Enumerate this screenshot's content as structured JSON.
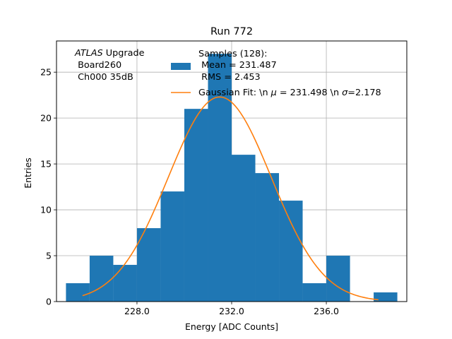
{
  "chart_data": {
    "type": "bar",
    "title": "Run 772",
    "xlabel": "Energy [ADC Counts]",
    "ylabel": "Entries",
    "xlim": [
      224.6,
      239.4
    ],
    "ylim": [
      0,
      28.4
    ],
    "grid": true,
    "x_ticks": [
      228.0,
      232.0,
      236.0
    ],
    "x_tick_labels": [
      "228.0",
      "232.0",
      "236.0"
    ],
    "y_ticks": [
      0,
      5,
      10,
      15,
      20,
      25
    ],
    "y_tick_labels": [
      "0",
      "5",
      "10",
      "15",
      "20",
      "25"
    ],
    "bin_edges": [
      225.0,
      226.0,
      227.0,
      228.0,
      229.0,
      230.0,
      231.0,
      232.0,
      233.0,
      234.0,
      235.0,
      236.0,
      237.0,
      238.0,
      239.0
    ],
    "counts": [
      2,
      5,
      4,
      8,
      12,
      21,
      27,
      16,
      14,
      11,
      2,
      5,
      0,
      1
    ],
    "bar_color": "#1f77b4",
    "fit": {
      "type": "gaussian",
      "mu": 231.498,
      "sigma": 2.178,
      "amplitude": 22.3,
      "x_range": [
        225.7,
        238.2
      ],
      "color": "#ff7f0e"
    },
    "annotation": {
      "experiment": "ATLAS",
      "experiment_suffix": " Upgrade",
      "board": " Board260",
      "channel": " Ch000 35dB"
    },
    "legend": {
      "placement": "top-right",
      "samples_line1": "Samples (128):",
      "samples_line2": " Mean = 231.487",
      "samples_line3": " RMS = 2.453",
      "fit_label_prefix": "Gaussian Fit: \\n ",
      "fit_mu_symbol": "μ",
      "fit_label_mid": " = 231.498 \\n ",
      "fit_sigma_symbol": "σ",
      "fit_label_suffix": "=2.178"
    }
  }
}
